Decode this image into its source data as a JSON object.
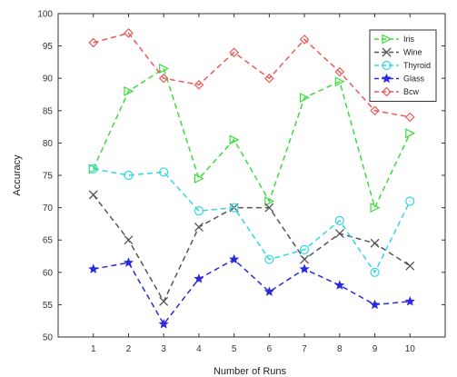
{
  "chart_data": {
    "type": "line",
    "title": "",
    "xlabel": "Number of Runs",
    "ylabel": "Accuracy",
    "x": [
      1,
      2,
      3,
      4,
      5,
      6,
      7,
      8,
      9,
      10
    ],
    "xlim": [
      0,
      11
    ],
    "ylim": [
      50,
      100
    ],
    "yticks": [
      50,
      55,
      60,
      65,
      70,
      75,
      80,
      85,
      90,
      95,
      100
    ],
    "grid": false,
    "legend_position": "top-right",
    "series": [
      {
        "name": "Iris",
        "color": "#3ddc3d",
        "marker": "triangle-right",
        "values": [
          76,
          88,
          91.5,
          74.5,
          80.5,
          71,
          87,
          89.5,
          70,
          81.5
        ]
      },
      {
        "name": "Wine",
        "color": "#555555",
        "marker": "x",
        "values": [
          72,
          65,
          55.5,
          67,
          70,
          70,
          62,
          66,
          64.5,
          61
        ]
      },
      {
        "name": "Thyroid",
        "color": "#33d6e6",
        "marker": "circle",
        "values": [
          76,
          75,
          75.5,
          69.5,
          70,
          62,
          63.5,
          68,
          60,
          71
        ]
      },
      {
        "name": "Glass",
        "color": "#2b2bdc",
        "marker": "star",
        "values": [
          60.5,
          61.5,
          52,
          59,
          62,
          57,
          60.5,
          58,
          55,
          55.5
        ]
      },
      {
        "name": "Bcw",
        "color": "#e85a5a",
        "marker": "diamond",
        "values": [
          95.5,
          97,
          90,
          89,
          94,
          90,
          96,
          91,
          85,
          84
        ]
      }
    ]
  },
  "legend": {
    "labels": [
      "Iris",
      "Wine",
      "Thyroid",
      "Glass",
      "Bcw"
    ]
  }
}
